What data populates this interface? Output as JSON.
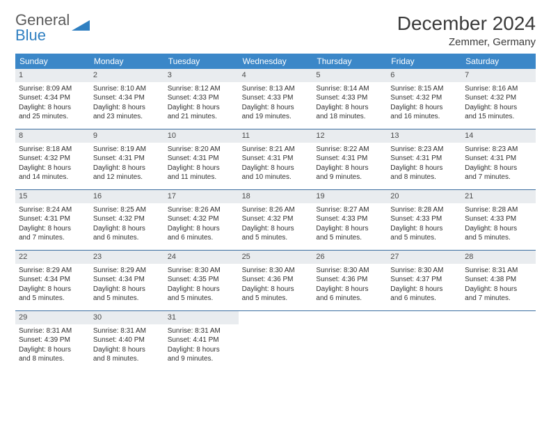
{
  "brand": {
    "part1": "General",
    "part2": "Blue"
  },
  "title": "December 2024",
  "location": "Zemmer, Germany",
  "colors": {
    "header_bg": "#3b87c8",
    "header_text": "#ffffff",
    "daynum_bg": "#e9ecef",
    "row_border": "#3b6ea0",
    "body_text": "#303030",
    "brand_gray": "#5a5a5a",
    "brand_blue": "#2f7fc1"
  },
  "day_headers": [
    "Sunday",
    "Monday",
    "Tuesday",
    "Wednesday",
    "Thursday",
    "Friday",
    "Saturday"
  ],
  "weeks": [
    [
      {
        "n": "1",
        "sr": "Sunrise: 8:09 AM",
        "ss": "Sunset: 4:34 PM",
        "d1": "Daylight: 8 hours",
        "d2": "and 25 minutes."
      },
      {
        "n": "2",
        "sr": "Sunrise: 8:10 AM",
        "ss": "Sunset: 4:34 PM",
        "d1": "Daylight: 8 hours",
        "d2": "and 23 minutes."
      },
      {
        "n": "3",
        "sr": "Sunrise: 8:12 AM",
        "ss": "Sunset: 4:33 PM",
        "d1": "Daylight: 8 hours",
        "d2": "and 21 minutes."
      },
      {
        "n": "4",
        "sr": "Sunrise: 8:13 AM",
        "ss": "Sunset: 4:33 PM",
        "d1": "Daylight: 8 hours",
        "d2": "and 19 minutes."
      },
      {
        "n": "5",
        "sr": "Sunrise: 8:14 AM",
        "ss": "Sunset: 4:33 PM",
        "d1": "Daylight: 8 hours",
        "d2": "and 18 minutes."
      },
      {
        "n": "6",
        "sr": "Sunrise: 8:15 AM",
        "ss": "Sunset: 4:32 PM",
        "d1": "Daylight: 8 hours",
        "d2": "and 16 minutes."
      },
      {
        "n": "7",
        "sr": "Sunrise: 8:16 AM",
        "ss": "Sunset: 4:32 PM",
        "d1": "Daylight: 8 hours",
        "d2": "and 15 minutes."
      }
    ],
    [
      {
        "n": "8",
        "sr": "Sunrise: 8:18 AM",
        "ss": "Sunset: 4:32 PM",
        "d1": "Daylight: 8 hours",
        "d2": "and 14 minutes."
      },
      {
        "n": "9",
        "sr": "Sunrise: 8:19 AM",
        "ss": "Sunset: 4:31 PM",
        "d1": "Daylight: 8 hours",
        "d2": "and 12 minutes."
      },
      {
        "n": "10",
        "sr": "Sunrise: 8:20 AM",
        "ss": "Sunset: 4:31 PM",
        "d1": "Daylight: 8 hours",
        "d2": "and 11 minutes."
      },
      {
        "n": "11",
        "sr": "Sunrise: 8:21 AM",
        "ss": "Sunset: 4:31 PM",
        "d1": "Daylight: 8 hours",
        "d2": "and 10 minutes."
      },
      {
        "n": "12",
        "sr": "Sunrise: 8:22 AM",
        "ss": "Sunset: 4:31 PM",
        "d1": "Daylight: 8 hours",
        "d2": "and 9 minutes."
      },
      {
        "n": "13",
        "sr": "Sunrise: 8:23 AM",
        "ss": "Sunset: 4:31 PM",
        "d1": "Daylight: 8 hours",
        "d2": "and 8 minutes."
      },
      {
        "n": "14",
        "sr": "Sunrise: 8:23 AM",
        "ss": "Sunset: 4:31 PM",
        "d1": "Daylight: 8 hours",
        "d2": "and 7 minutes."
      }
    ],
    [
      {
        "n": "15",
        "sr": "Sunrise: 8:24 AM",
        "ss": "Sunset: 4:31 PM",
        "d1": "Daylight: 8 hours",
        "d2": "and 7 minutes."
      },
      {
        "n": "16",
        "sr": "Sunrise: 8:25 AM",
        "ss": "Sunset: 4:32 PM",
        "d1": "Daylight: 8 hours",
        "d2": "and 6 minutes."
      },
      {
        "n": "17",
        "sr": "Sunrise: 8:26 AM",
        "ss": "Sunset: 4:32 PM",
        "d1": "Daylight: 8 hours",
        "d2": "and 6 minutes."
      },
      {
        "n": "18",
        "sr": "Sunrise: 8:26 AM",
        "ss": "Sunset: 4:32 PM",
        "d1": "Daylight: 8 hours",
        "d2": "and 5 minutes."
      },
      {
        "n": "19",
        "sr": "Sunrise: 8:27 AM",
        "ss": "Sunset: 4:33 PM",
        "d1": "Daylight: 8 hours",
        "d2": "and 5 minutes."
      },
      {
        "n": "20",
        "sr": "Sunrise: 8:28 AM",
        "ss": "Sunset: 4:33 PM",
        "d1": "Daylight: 8 hours",
        "d2": "and 5 minutes."
      },
      {
        "n": "21",
        "sr": "Sunrise: 8:28 AM",
        "ss": "Sunset: 4:33 PM",
        "d1": "Daylight: 8 hours",
        "d2": "and 5 minutes."
      }
    ],
    [
      {
        "n": "22",
        "sr": "Sunrise: 8:29 AM",
        "ss": "Sunset: 4:34 PM",
        "d1": "Daylight: 8 hours",
        "d2": "and 5 minutes."
      },
      {
        "n": "23",
        "sr": "Sunrise: 8:29 AM",
        "ss": "Sunset: 4:34 PM",
        "d1": "Daylight: 8 hours",
        "d2": "and 5 minutes."
      },
      {
        "n": "24",
        "sr": "Sunrise: 8:30 AM",
        "ss": "Sunset: 4:35 PM",
        "d1": "Daylight: 8 hours",
        "d2": "and 5 minutes."
      },
      {
        "n": "25",
        "sr": "Sunrise: 8:30 AM",
        "ss": "Sunset: 4:36 PM",
        "d1": "Daylight: 8 hours",
        "d2": "and 5 minutes."
      },
      {
        "n": "26",
        "sr": "Sunrise: 8:30 AM",
        "ss": "Sunset: 4:36 PM",
        "d1": "Daylight: 8 hours",
        "d2": "and 6 minutes."
      },
      {
        "n": "27",
        "sr": "Sunrise: 8:30 AM",
        "ss": "Sunset: 4:37 PM",
        "d1": "Daylight: 8 hours",
        "d2": "and 6 minutes."
      },
      {
        "n": "28",
        "sr": "Sunrise: 8:31 AM",
        "ss": "Sunset: 4:38 PM",
        "d1": "Daylight: 8 hours",
        "d2": "and 7 minutes."
      }
    ],
    [
      {
        "n": "29",
        "sr": "Sunrise: 8:31 AM",
        "ss": "Sunset: 4:39 PM",
        "d1": "Daylight: 8 hours",
        "d2": "and 8 minutes."
      },
      {
        "n": "30",
        "sr": "Sunrise: 8:31 AM",
        "ss": "Sunset: 4:40 PM",
        "d1": "Daylight: 8 hours",
        "d2": "and 8 minutes."
      },
      {
        "n": "31",
        "sr": "Sunrise: 8:31 AM",
        "ss": "Sunset: 4:41 PM",
        "d1": "Daylight: 8 hours",
        "d2": "and 9 minutes."
      },
      {
        "empty": true
      },
      {
        "empty": true
      },
      {
        "empty": true
      },
      {
        "empty": true
      }
    ]
  ]
}
